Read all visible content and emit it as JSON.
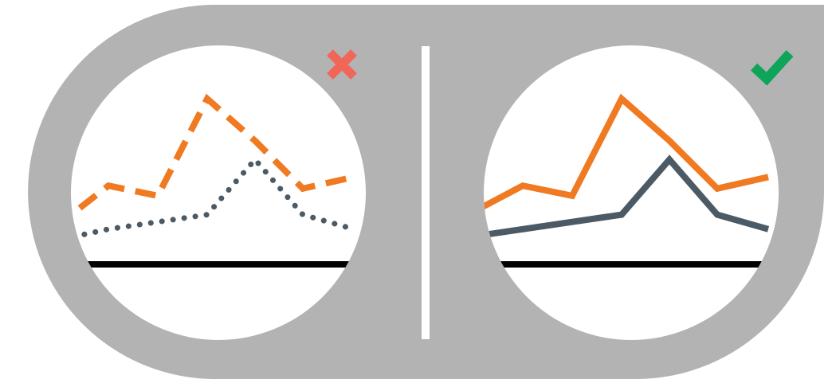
{
  "colors": {
    "panel": "#b3b3b3",
    "background": "#ffffff",
    "orange": "#f07a22",
    "slate": "#4b5a65",
    "baseline": "#000000",
    "cross": "#f0675a",
    "check": "#0ea55a"
  },
  "icons": {
    "bad": "cross-icon",
    "good": "check-icon"
  },
  "chart_data": [
    {
      "type": "line",
      "x": [
        0,
        1,
        2,
        3,
        4,
        5,
        6
      ],
      "ylim": [
        0,
        100
      ],
      "series": [
        {
          "values": [
            22,
            40,
            33,
            100,
            71,
            38,
            46
          ],
          "style": "dashed",
          "color": "#f07a22"
        },
        {
          "values": [
            5,
            10,
            15,
            20,
            58,
            20,
            10
          ],
          "style": "dotted",
          "color": "#4b5a65"
        }
      ]
    },
    {
      "type": "line",
      "x": [
        0,
        1,
        2,
        3,
        4,
        5,
        6
      ],
      "ylim": [
        0,
        100
      ],
      "series": [
        {
          "values": [
            22,
            40,
            33,
            100,
            71,
            38,
            46
          ],
          "style": "solid",
          "color": "#f07a22"
        },
        {
          "values": [
            5,
            10,
            15,
            20,
            58,
            20,
            10
          ],
          "style": "solid",
          "color": "#4b5a65"
        }
      ]
    }
  ]
}
